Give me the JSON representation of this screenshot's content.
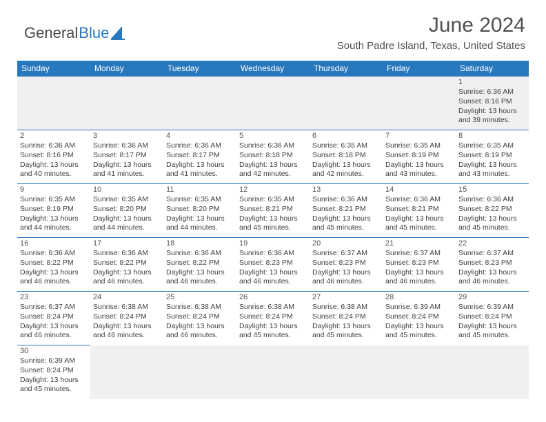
{
  "logo": {
    "textA": "General",
    "textB": "Blue"
  },
  "title": "June 2024",
  "location": "South Padre Island, Texas, United States",
  "header_bg": "#2878bd",
  "header_fg": "#ffffff",
  "border_color": "#2878bd",
  "text_color": "#404040",
  "dayHeaders": [
    "Sunday",
    "Monday",
    "Tuesday",
    "Wednesday",
    "Thursday",
    "Friday",
    "Saturday"
  ],
  "firstWeekday": 6,
  "daysInMonth": 30,
  "cellTemplate": {
    "sunriseLabel": "Sunrise: ",
    "sunsetLabel": "Sunset: ",
    "daylightLabel": "Daylight: ",
    "hoursWord": " hours",
    "minutesSuffix": " minutes.",
    "andWord": "and "
  },
  "days": {
    "1": {
      "sunrise": "6:36 AM",
      "sunset": "8:16 PM",
      "dlH": 13,
      "dlM": 39
    },
    "2": {
      "sunrise": "6:36 AM",
      "sunset": "8:16 PM",
      "dlH": 13,
      "dlM": 40
    },
    "3": {
      "sunrise": "6:36 AM",
      "sunset": "8:17 PM",
      "dlH": 13,
      "dlM": 41
    },
    "4": {
      "sunrise": "6:36 AM",
      "sunset": "8:17 PM",
      "dlH": 13,
      "dlM": 41
    },
    "5": {
      "sunrise": "6:36 AM",
      "sunset": "8:18 PM",
      "dlH": 13,
      "dlM": 42
    },
    "6": {
      "sunrise": "6:35 AM",
      "sunset": "8:18 PM",
      "dlH": 13,
      "dlM": 42
    },
    "7": {
      "sunrise": "6:35 AM",
      "sunset": "8:19 PM",
      "dlH": 13,
      "dlM": 43
    },
    "8": {
      "sunrise": "6:35 AM",
      "sunset": "8:19 PM",
      "dlH": 13,
      "dlM": 43
    },
    "9": {
      "sunrise": "6:35 AM",
      "sunset": "8:19 PM",
      "dlH": 13,
      "dlM": 44
    },
    "10": {
      "sunrise": "6:35 AM",
      "sunset": "8:20 PM",
      "dlH": 13,
      "dlM": 44
    },
    "11": {
      "sunrise": "6:35 AM",
      "sunset": "8:20 PM",
      "dlH": 13,
      "dlM": 44
    },
    "12": {
      "sunrise": "6:35 AM",
      "sunset": "8:21 PM",
      "dlH": 13,
      "dlM": 45
    },
    "13": {
      "sunrise": "6:36 AM",
      "sunset": "8:21 PM",
      "dlH": 13,
      "dlM": 45
    },
    "14": {
      "sunrise": "6:36 AM",
      "sunset": "8:21 PM",
      "dlH": 13,
      "dlM": 45
    },
    "15": {
      "sunrise": "6:36 AM",
      "sunset": "8:22 PM",
      "dlH": 13,
      "dlM": 45
    },
    "16": {
      "sunrise": "6:36 AM",
      "sunset": "8:22 PM",
      "dlH": 13,
      "dlM": 46
    },
    "17": {
      "sunrise": "6:36 AM",
      "sunset": "8:22 PM",
      "dlH": 13,
      "dlM": 46
    },
    "18": {
      "sunrise": "6:36 AM",
      "sunset": "8:22 PM",
      "dlH": 13,
      "dlM": 46
    },
    "19": {
      "sunrise": "6:36 AM",
      "sunset": "8:23 PM",
      "dlH": 13,
      "dlM": 46
    },
    "20": {
      "sunrise": "6:37 AM",
      "sunset": "8:23 PM",
      "dlH": 13,
      "dlM": 46
    },
    "21": {
      "sunrise": "6:37 AM",
      "sunset": "8:23 PM",
      "dlH": 13,
      "dlM": 46
    },
    "22": {
      "sunrise": "6:37 AM",
      "sunset": "8:23 PM",
      "dlH": 13,
      "dlM": 46
    },
    "23": {
      "sunrise": "6:37 AM",
      "sunset": "8:24 PM",
      "dlH": 13,
      "dlM": 46
    },
    "24": {
      "sunrise": "6:38 AM",
      "sunset": "8:24 PM",
      "dlH": 13,
      "dlM": 46
    },
    "25": {
      "sunrise": "6:38 AM",
      "sunset": "8:24 PM",
      "dlH": 13,
      "dlM": 46
    },
    "26": {
      "sunrise": "6:38 AM",
      "sunset": "8:24 PM",
      "dlH": 13,
      "dlM": 45
    },
    "27": {
      "sunrise": "6:38 AM",
      "sunset": "8:24 PM",
      "dlH": 13,
      "dlM": 45
    },
    "28": {
      "sunrise": "6:39 AM",
      "sunset": "8:24 PM",
      "dlH": 13,
      "dlM": 45
    },
    "29": {
      "sunrise": "6:39 AM",
      "sunset": "8:24 PM",
      "dlH": 13,
      "dlM": 45
    },
    "30": {
      "sunrise": "6:39 AM",
      "sunset": "8:24 PM",
      "dlH": 13,
      "dlM": 45
    }
  }
}
